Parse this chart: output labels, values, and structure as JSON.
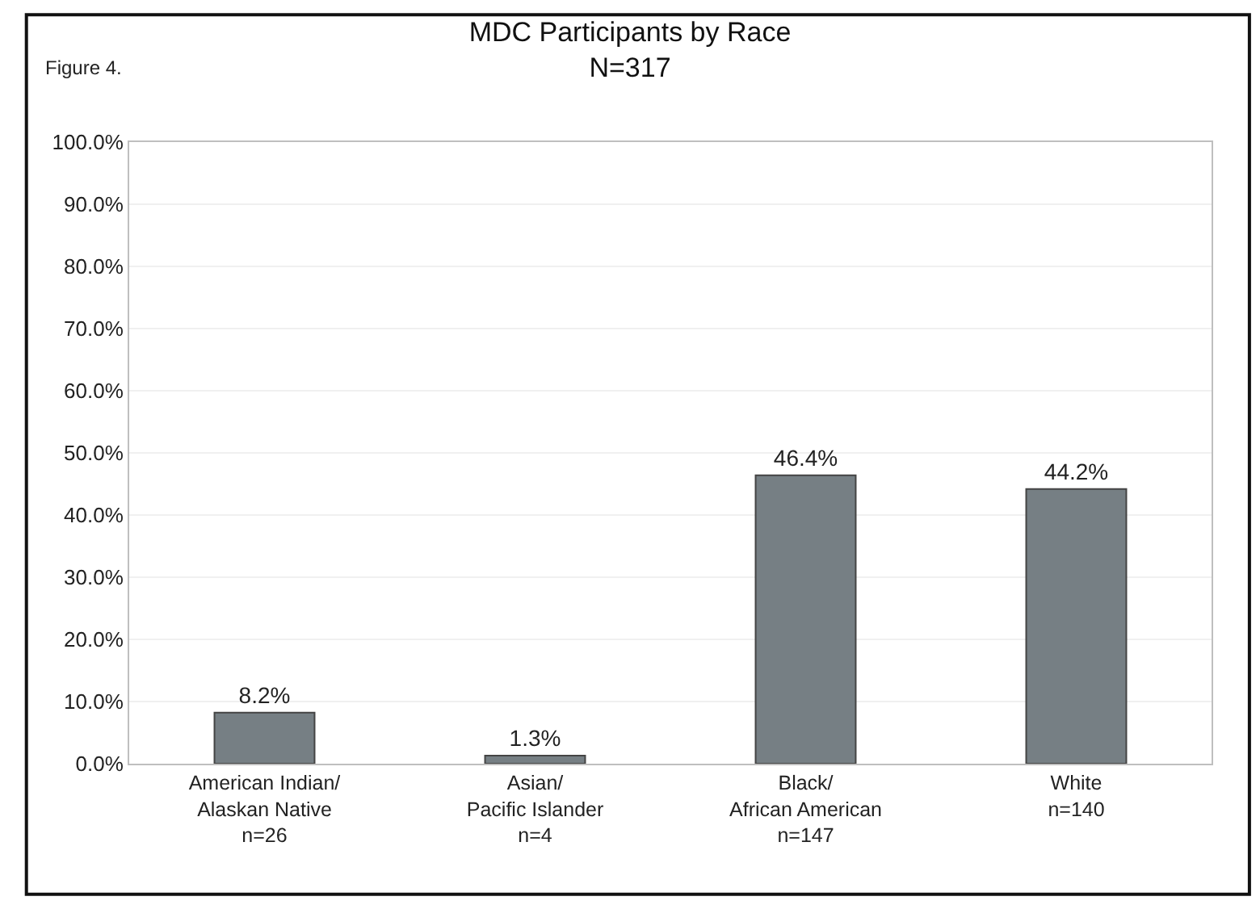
{
  "chart_data": {
    "type": "bar",
    "title": "MDC Participants by Race",
    "subtitle": "N=317",
    "annotations": [
      "Figure 4."
    ],
    "categories": [
      "American Indian/\nAlaskan Native\nn=26",
      "Asian/\nPacific Islander\nn=4",
      "Black/\nAfrican American\nn=147",
      "White\nn=140"
    ],
    "values": [
      8.2,
      1.3,
      46.4,
      44.2
    ],
    "color": "#767f84",
    "value_labels": [
      "8.2%",
      "1.3%",
      "46.4%",
      "44.2%"
    ],
    "ylim": [
      0,
      100
    ],
    "yticks": [
      {
        "value": 0,
        "label": "0.0%"
      },
      {
        "value": 10,
        "label": "10.0%"
      },
      {
        "value": 20,
        "label": "20.0%"
      },
      {
        "value": 30,
        "label": "30.0%"
      },
      {
        "value": 40,
        "label": "40.0%"
      },
      {
        "value": 50,
        "label": "50.0%"
      },
      {
        "value": 60,
        "label": "60.0%"
      },
      {
        "value": 70,
        "label": "70.0%"
      },
      {
        "value": 80,
        "label": "80.0%"
      },
      {
        "value": 90,
        "label": "90.0%"
      },
      {
        "value": 100,
        "label": "100.0%"
      }
    ],
    "grid": "y",
    "legend": false
  }
}
